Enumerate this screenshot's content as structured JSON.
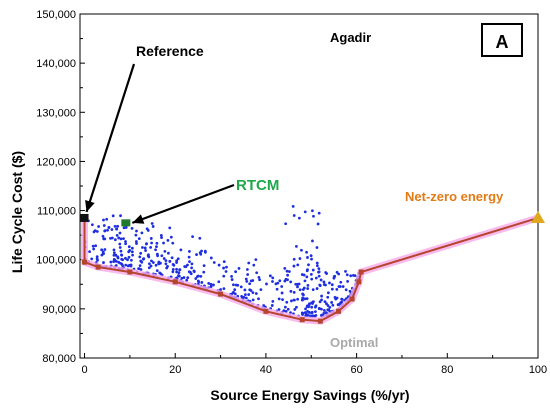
{
  "chart_data": {
    "type": "scatter",
    "xlabel": "Source Energy Savings (%/yr)",
    "ylabel": "Life Cycle Cost ($)",
    "xlim": [
      -1,
      100
    ],
    "ylim": [
      80000,
      150000
    ],
    "x_ticks": [
      0,
      20,
      40,
      60,
      80,
      100
    ],
    "y_ticks": [
      80000,
      90000,
      100000,
      110000,
      120000,
      130000,
      140000,
      150000
    ],
    "x_tick_labels": [
      "0",
      "20",
      "40",
      "60",
      "80",
      "100"
    ],
    "y_tick_labels": [
      "80,000",
      "90,000",
      "100,000",
      "110,000",
      "120,000",
      "130,000",
      "140,000",
      "150,000"
    ],
    "location_label": "Agadir",
    "panel_label": "A",
    "annotations": {
      "reference": {
        "text": "Reference",
        "color": "#000000",
        "point": [
          0,
          108500
        ]
      },
      "rtcm": {
        "text": "RTCM",
        "color": "#1fa84b",
        "point": [
          9,
          107500
        ]
      },
      "net_zero": {
        "text": "Net-zero energy",
        "color": "#e07b16",
        "point": [
          100,
          108500
        ]
      },
      "optimal": {
        "text": "Optimal",
        "color": "#a9a9a9",
        "point": [
          52,
          87500
        ]
      }
    },
    "pareto_front": [
      [
        0,
        108500
      ],
      [
        0,
        99500
      ],
      [
        3,
        98500
      ],
      [
        10,
        97500
      ],
      [
        20,
        95500
      ],
      [
        30,
        93000
      ],
      [
        40,
        89500
      ],
      [
        48,
        87800
      ],
      [
        52,
        87500
      ],
      [
        56,
        89500
      ],
      [
        59,
        92000
      ],
      [
        60.5,
        95500
      ],
      [
        61,
        97500
      ],
      [
        100,
        108500
      ]
    ],
    "scatter_clusters": [
      {
        "x_range": [
          0,
          10
        ],
        "y_range": [
          98500,
          109000
        ],
        "count": 60
      },
      {
        "x_range": [
          2,
          20
        ],
        "y_range": [
          98000,
          107500
        ],
        "count": 80
      },
      {
        "x_range": [
          8,
          27
        ],
        "y_range": [
          94000,
          105000
        ],
        "count": 90
      },
      {
        "x_range": [
          18,
          38
        ],
        "y_range": [
          91500,
          100500
        ],
        "count": 80
      },
      {
        "x_range": [
          32,
          48
        ],
        "y_range": [
          89000,
          97000
        ],
        "count": 80
      },
      {
        "x_range": [
          44,
          52
        ],
        "y_range": [
          88500,
          111000
        ],
        "count": 60
      },
      {
        "x_range": [
          48,
          61
        ],
        "y_range": [
          88500,
          98000
        ],
        "count": 160
      }
    ],
    "colors": {
      "points": "#1f2fe0",
      "front_line": "#b5452c",
      "front_glow": "#f7a9e8",
      "net_zero_marker": "#e0a81f",
      "rtcm_marker": "#1f7a2e"
    }
  }
}
